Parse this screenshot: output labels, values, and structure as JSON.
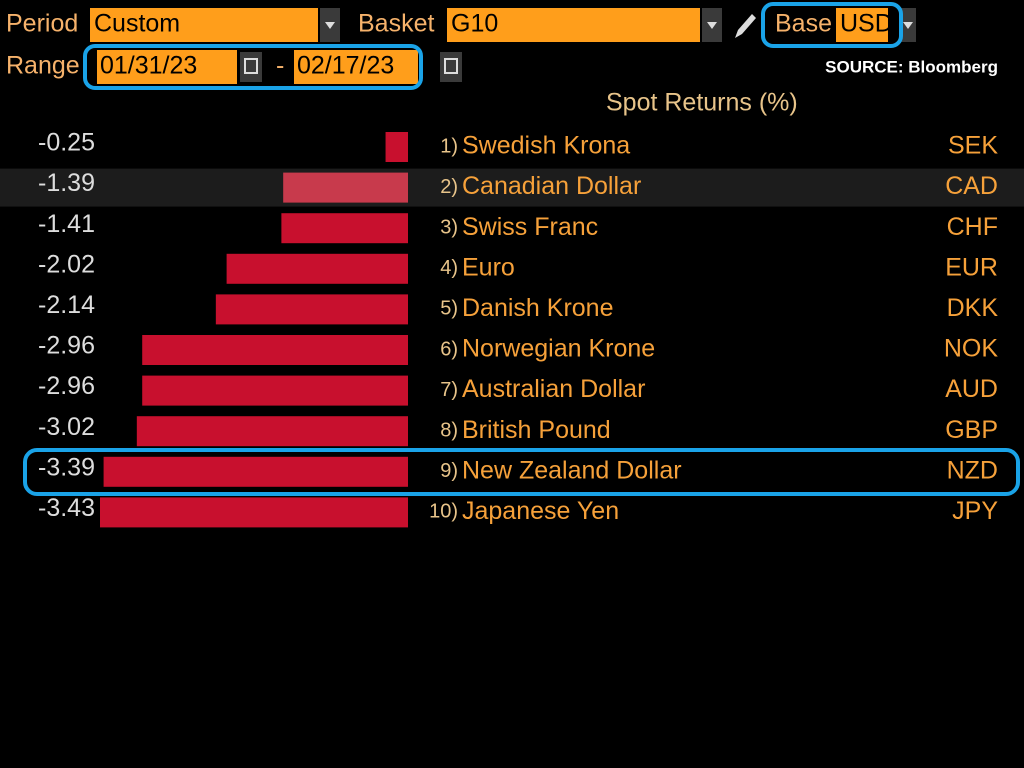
{
  "header": {
    "period_label": "Period",
    "period_value": "Custom",
    "basket_label": "Basket",
    "basket_value": "G10",
    "base_label": "Base",
    "base_value": "USD",
    "range_label": "Range",
    "range_start": "01/31/23",
    "range_separator": "-",
    "range_end": "02/17/23",
    "source": "SOURCE: Bloomberg"
  },
  "chart_data": {
    "type": "bar",
    "title": "Spot Returns (%)",
    "ranks": [
      "1)",
      "2)",
      "3)",
      "4)",
      "5)",
      "6)",
      "7)",
      "8)",
      "9)",
      "10)"
    ],
    "categories": [
      "Swedish Krona",
      "Canadian Dollar",
      "Swiss Franc",
      "Euro",
      "Danish Krone",
      "Norwegian Krone",
      "Australian Dollar",
      "British Pound",
      "New Zealand Dollar",
      "Japanese Yen"
    ],
    "codes": [
      "SEK",
      "CAD",
      "CHF",
      "EUR",
      "DKK",
      "NOK",
      "AUD",
      "GBP",
      "NZD",
      "JPY"
    ],
    "values": [
      -0.25,
      -1.39,
      -1.41,
      -2.02,
      -2.14,
      -2.96,
      -2.96,
      -3.02,
      -3.39,
      -3.43
    ],
    "color": "#c8102e"
  }
}
